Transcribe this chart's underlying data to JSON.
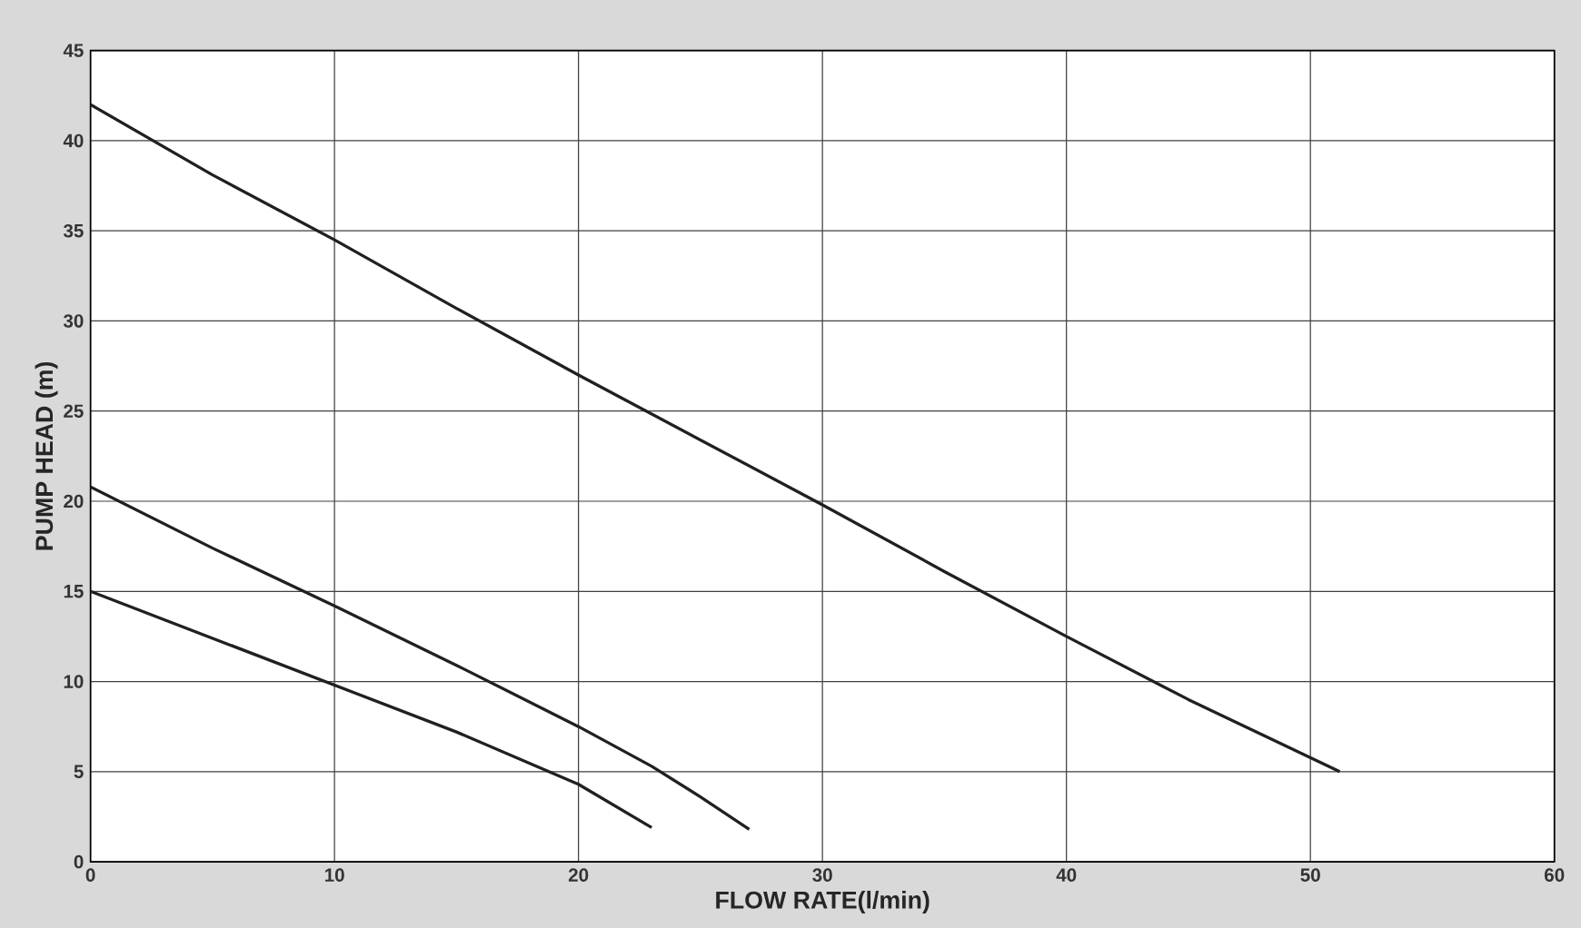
{
  "chart_data": {
    "type": "line",
    "xlabel": "FLOW  RATE(l/min)",
    "ylabel": "PUMP HEAD (m)",
    "xlim": [
      0,
      60
    ],
    "ylim": [
      0,
      45
    ],
    "xticks": [
      0,
      10,
      20,
      30,
      40,
      50,
      60
    ],
    "yticks": [
      0,
      5,
      10,
      15,
      20,
      25,
      30,
      35,
      40,
      45
    ],
    "grid": true,
    "marker": "none",
    "line_style": "solid",
    "series": [
      {
        "color": "#231f20",
        "x": [
          0,
          5,
          10,
          15,
          20,
          25,
          30,
          35,
          40,
          45,
          51.2
        ],
        "values": [
          42,
          38.1,
          34.5,
          30.7,
          27,
          23.4,
          19.8,
          16.1,
          12.5,
          9,
          5
        ]
      },
      {
        "color": "#231f20",
        "x": [
          0,
          5,
          10,
          15,
          20,
          23,
          25,
          27
        ],
        "values": [
          20.8,
          17.4,
          14.2,
          10.9,
          7.5,
          5.3,
          3.6,
          1.8
        ]
      },
      {
        "color": "#231f20",
        "x": [
          0,
          5,
          10,
          15,
          20,
          23
        ],
        "values": [
          15,
          12.4,
          9.8,
          7.2,
          4.3,
          1.9
        ]
      }
    ]
  }
}
